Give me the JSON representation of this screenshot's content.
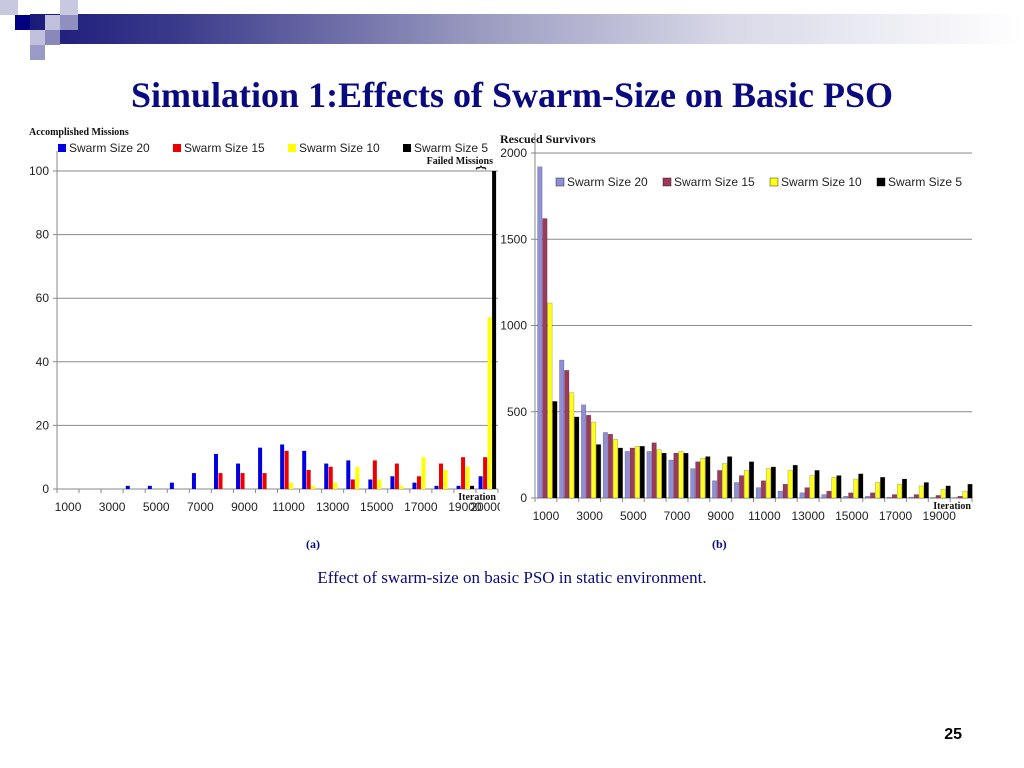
{
  "slide": {
    "title": "Simulation 1:Effects of Swarm-Size on Basic PSO",
    "caption": "Effect of swarm-size on basic PSO in static environment.",
    "slide_number": "25",
    "panel_a_label": "(a)",
    "panel_b_label": "(b)"
  },
  "chart_data": [
    {
      "type": "bar",
      "title": "Accomplished Missions",
      "xlabel": "Iteration",
      "ylabel": "Accomplished Missions",
      "annotation": "Failed Missions",
      "ylim": [
        0,
        100
      ],
      "yticks": [
        0,
        20,
        40,
        60,
        80,
        100
      ],
      "grid": true,
      "legend_position": "top",
      "categories": [
        1000,
        2000,
        3000,
        4000,
        5000,
        6000,
        7000,
        8000,
        9000,
        10000,
        11000,
        12000,
        13000,
        14000,
        15000,
        16000,
        17000,
        18000,
        19000,
        20000
      ],
      "xtick_labels": [
        "1000",
        "3000",
        "5000",
        "7000",
        "9000",
        "11000",
        "13000",
        "15000",
        "17000",
        "19000",
        "20000"
      ],
      "series": [
        {
          "name": "Swarm Size 20",
          "color": "#0000e0",
          "values": [
            0,
            0,
            0,
            1,
            1,
            2,
            5,
            11,
            8,
            13,
            14,
            12,
            8,
            9,
            3,
            4,
            2,
            1,
            1,
            4
          ]
        },
        {
          "name": "Swarm Size 15",
          "color": "#ee0000",
          "values": [
            0,
            0,
            0,
            0,
            0,
            0,
            0,
            5,
            5,
            5,
            12,
            6,
            7,
            3,
            9,
            8,
            4,
            8,
            10,
            10
          ]
        },
        {
          "name": "Swarm Size 10",
          "color": "#ffff00",
          "values": [
            0,
            0,
            0,
            0,
            0,
            0,
            0,
            0,
            0,
            0,
            2,
            1,
            2,
            7,
            3,
            1,
            10,
            6,
            7,
            54
          ]
        },
        {
          "name": "Swarm Size 5",
          "color": "#000000",
          "values": [
            0,
            0,
            0,
            0,
            0,
            0,
            0,
            0,
            0,
            0,
            0,
            0,
            0,
            0,
            0,
            0,
            0,
            0,
            1,
            100
          ]
        }
      ]
    },
    {
      "type": "bar",
      "title": "Rescued Survivors",
      "xlabel": "Iteration",
      "ylabel": "Rescued Survivors",
      "ylim": [
        0,
        2000
      ],
      "yticks": [
        0,
        500,
        1000,
        1500,
        2000
      ],
      "grid": true,
      "legend_position": "top",
      "categories": [
        1000,
        2000,
        3000,
        4000,
        5000,
        6000,
        7000,
        8000,
        9000,
        10000,
        11000,
        12000,
        13000,
        14000,
        15000,
        16000,
        17000,
        18000,
        19000,
        20000
      ],
      "xtick_labels": [
        "1000",
        "3000",
        "5000",
        "7000",
        "9000",
        "11000",
        "13000",
        "15000",
        "17000",
        "19000"
      ],
      "series": [
        {
          "name": "Swarm Size 20",
          "color": "#8f8fd8",
          "values": [
            1920,
            800,
            540,
            380,
            270,
            270,
            220,
            170,
            100,
            90,
            60,
            40,
            30,
            20,
            10,
            10,
            5,
            5,
            3,
            2
          ]
        },
        {
          "name": "Swarm Size 15",
          "color": "#9c3a5c",
          "values": [
            1620,
            740,
            480,
            370,
            290,
            320,
            260,
            210,
            160,
            130,
            100,
            80,
            60,
            40,
            30,
            30,
            20,
            20,
            15,
            10
          ]
        },
        {
          "name": "Swarm Size 10",
          "color": "#ffff1a",
          "values": [
            1130,
            610,
            440,
            340,
            300,
            280,
            270,
            230,
            200,
            160,
            170,
            160,
            130,
            120,
            110,
            90,
            80,
            70,
            50,
            40
          ]
        },
        {
          "name": "Swarm Size 5",
          "color": "#000000",
          "values": [
            560,
            470,
            310,
            290,
            300,
            260,
            260,
            240,
            240,
            210,
            180,
            190,
            160,
            130,
            140,
            120,
            110,
            90,
            70,
            80
          ]
        }
      ]
    }
  ]
}
